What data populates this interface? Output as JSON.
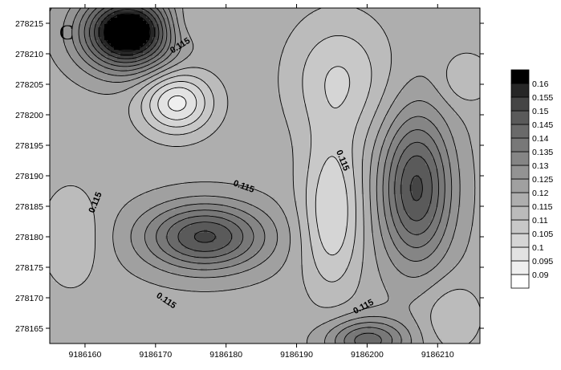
{
  "chart_data": {
    "type": "heatmap",
    "panel_label": "C",
    "x_ticks": [
      9186160,
      9186170,
      9186180,
      9186190,
      9186200,
      9186210
    ],
    "y_ticks": [
      278165,
      278170,
      278175,
      278180,
      278185,
      278190,
      278195,
      278200,
      278205,
      278210,
      278215
    ],
    "xlim": [
      9186155,
      9186216
    ],
    "ylim": [
      278162.5,
      278217.5
    ],
    "contour_label": "0.115",
    "colorbar": {
      "levels": [
        0.09,
        0.095,
        0.1,
        0.105,
        0.11,
        0.115,
        0.12,
        0.125,
        0.13,
        0.135,
        0.14,
        0.145,
        0.15,
        0.155,
        0.16
      ],
      "colors": [
        "#ffffff",
        "#efefef",
        "#e2e2e2",
        "#d5d5d5",
        "#c8c8c8",
        "#bbbbbb",
        "#aeaeae",
        "#a0a0a0",
        "#939393",
        "#858585",
        "#787878",
        "#6a6a6a",
        "#5a5a5a",
        "#454545",
        "#262626",
        "#000000"
      ]
    },
    "features": [
      {
        "kind": "max",
        "x": 9186166,
        "y": 278213.5,
        "amp": 0.055,
        "sx": 4.5,
        "sy": 4.2
      },
      {
        "kind": "min",
        "x": 9186173,
        "y": 278202,
        "amp": 0.025,
        "sx": 3.5,
        "sy": 3.5
      },
      {
        "kind": "min",
        "x": 9186196,
        "y": 278206,
        "amp": 0.013,
        "sx": 5.0,
        "sy": 7.0
      },
      {
        "kind": "min",
        "x": 9186195,
        "y": 278184,
        "amp": 0.018,
        "sx": 3.0,
        "sy": 9.0
      },
      {
        "kind": "max",
        "x": 9186177,
        "y": 278180,
        "amp": 0.033,
        "sx": 6.0,
        "sy": 3.8
      },
      {
        "kind": "max",
        "x": 9186207,
        "y": 278188,
        "amp": 0.033,
        "sx": 3.5,
        "sy": 8.5
      },
      {
        "kind": "min",
        "x": 9186158,
        "y": 278180,
        "amp": 0.008,
        "sx": 3.0,
        "sy": 6.0
      },
      {
        "kind": "max",
        "x": 9186200,
        "y": 278163,
        "amp": 0.025,
        "sx": 4.0,
        "sy": 2.5
      },
      {
        "kind": "min",
        "x": 9186212,
        "y": 278167,
        "amp": 0.008,
        "sx": 3.0,
        "sy": 4.0
      },
      {
        "kind": "min",
        "x": 9186214,
        "y": 278206,
        "amp": 0.008,
        "sx": 2.5,
        "sy": 3.0
      },
      {
        "kind": "min",
        "x": 9186174,
        "y": 278215,
        "amp": 0.008,
        "sx": 2.0,
        "sy": 3.0
      }
    ],
    "background": 0.118
  }
}
